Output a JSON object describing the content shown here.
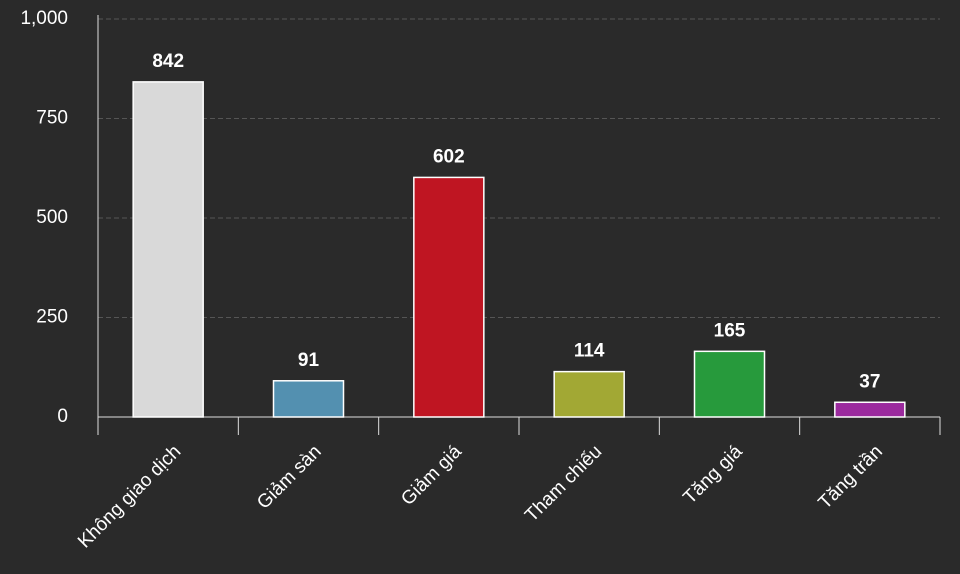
{
  "chart_data": {
    "type": "bar",
    "categories": [
      "Không giao dịch",
      "Giảm sàn",
      "Giảm giá",
      "Tham chiếu",
      "Tăng giá",
      "Tăng trần"
    ],
    "values": [
      842,
      91,
      602,
      114,
      165,
      37
    ],
    "colors": [
      "#d9d9d9",
      "#5390b0",
      "#bf1522",
      "#a2a834",
      "#279a3c",
      "#9b2a9e"
    ],
    "ylim": [
      0,
      1000
    ],
    "yticks": [
      0,
      250,
      500,
      750,
      {
        "value": 1000,
        "label": "1,000"
      }
    ],
    "grid": true
  }
}
